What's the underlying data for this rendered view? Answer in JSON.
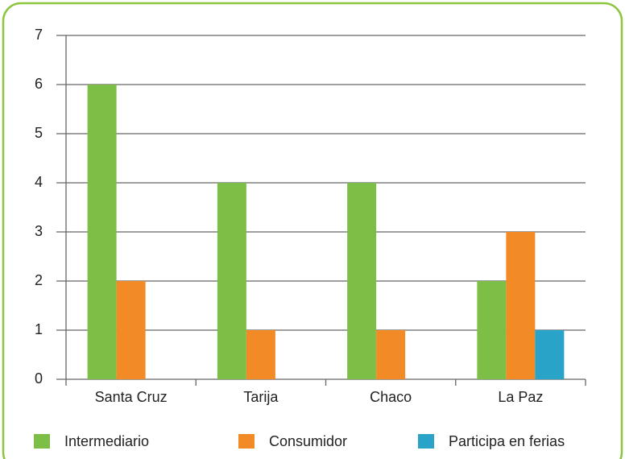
{
  "chart_data": {
    "type": "bar",
    "categories": [
      "Santa Cruz",
      "Tarija",
      "Chaco",
      "La Paz"
    ],
    "series": [
      {
        "name": "Intermediario",
        "color": "#7dbf46",
        "values": [
          6,
          4,
          4,
          2
        ]
      },
      {
        "name": "Consumidor",
        "color": "#f28a25",
        "values": [
          2,
          1,
          1,
          3
        ]
      },
      {
        "name": "Participa en ferias",
        "color": "#2aa3c9",
        "values": [
          0,
          0,
          0,
          1
        ]
      }
    ],
    "ylim": [
      0,
      7
    ],
    "yticks": [
      0,
      1,
      2,
      3,
      4,
      5,
      6,
      7
    ],
    "grid": true,
    "legend": "bottom"
  }
}
